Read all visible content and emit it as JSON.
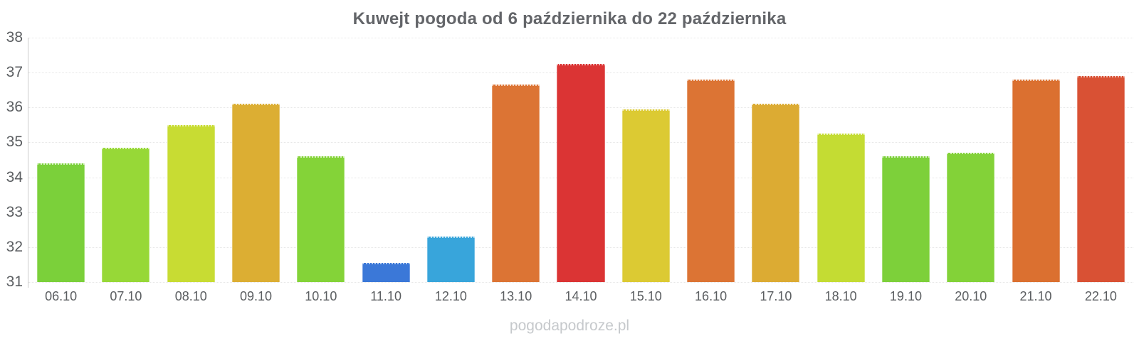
{
  "title": "Kuwejt pogoda od 6 października do 22 października",
  "watermark": "pogodapodroze.pl",
  "colors": {
    "background": "#ffffff",
    "title_text": "#636569",
    "axis_text": "#5b5e61",
    "grid_line": "#e7e7e7",
    "axis_line": "#cccccc",
    "watermark_text": "#c6c9cc"
  },
  "chart_data": {
    "type": "bar",
    "title": "Kuwejt pogoda od 6 października do 22 października",
    "xlabel": "",
    "ylabel": "",
    "ylim": [
      31,
      38
    ],
    "yticks": [
      31,
      32,
      33,
      34,
      35,
      36,
      37,
      38
    ],
    "grid": true,
    "legend_position": "none",
    "categories": [
      "06.10",
      "07.10",
      "08.10",
      "09.10",
      "10.10",
      "11.10",
      "12.10",
      "13.10",
      "14.10",
      "15.10",
      "16.10",
      "17.10",
      "18.10",
      "19.10",
      "20.10",
      "21.10",
      "22.10"
    ],
    "values": [
      34.4,
      34.85,
      35.5,
      36.1,
      34.6,
      31.55,
      32.3,
      36.65,
      37.25,
      35.95,
      36.8,
      36.1,
      35.25,
      34.6,
      34.7,
      36.8,
      36.9
    ],
    "bar_colors": [
      "#7bd03a",
      "#97d837",
      "#c8dc33",
      "#dcae33",
      "#84d338",
      "#3b78d8",
      "#38a5db",
      "#dc7434",
      "#db3434",
      "#dcca33",
      "#dc7434",
      "#dcab33",
      "#c4dc33",
      "#7dd03a",
      "#83d238",
      "#db7030",
      "#d95134"
    ]
  }
}
